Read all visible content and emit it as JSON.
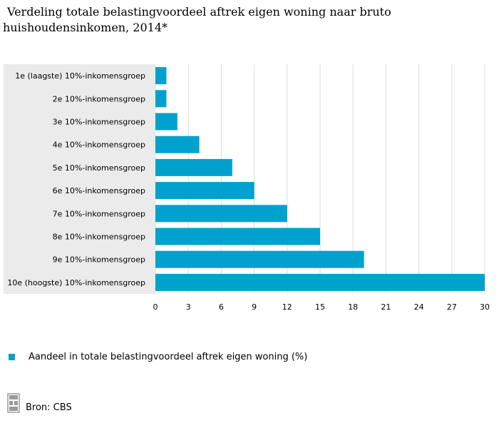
{
  "title": {
    "line1": "Verdeling totale belastingvoordeel aftrek eigen woning naar bruto",
    "line2": "huishoudensinkomen, 2014*"
  },
  "colors": {
    "bar": "#00a1cd",
    "label_panel": "#ebebeb",
    "grid": "#dddddd"
  },
  "chart_data": {
    "type": "bar",
    "orientation": "horizontal",
    "categories": [
      "1e (laagste) 10%-inkomensgroep",
      "2e 10%-inkomensgroep",
      "3e 10%-inkomensgroep",
      "4e 10%-inkomensgroep",
      "5e 10%-inkomensgroep",
      "6e 10%-inkomensgroep",
      "7e 10%-inkomensgroep",
      "8e 10%-inkomensgroep",
      "9e 10%-inkomensgroep",
      "10e (hoogste) 10%-inkomensgroep"
    ],
    "series": [
      {
        "name": "Aandeel in totale belastingvoordeel aftrek eigen woning (%)",
        "values": [
          1,
          1,
          2,
          4,
          7,
          9,
          12,
          15,
          19,
          30
        ]
      }
    ],
    "xlim": [
      0,
      30
    ],
    "xticks": [
      0,
      3,
      6,
      9,
      12,
      15,
      18,
      21,
      24,
      27,
      30
    ],
    "grid": true,
    "legend_position": "bottom-left"
  },
  "legend": {
    "label": "Aandeel in totale belastingvoordeel aftrek eigen woning (%)"
  },
  "source": {
    "label": "Bron: CBS",
    "logo_icon": "cbs-logo-icon"
  }
}
